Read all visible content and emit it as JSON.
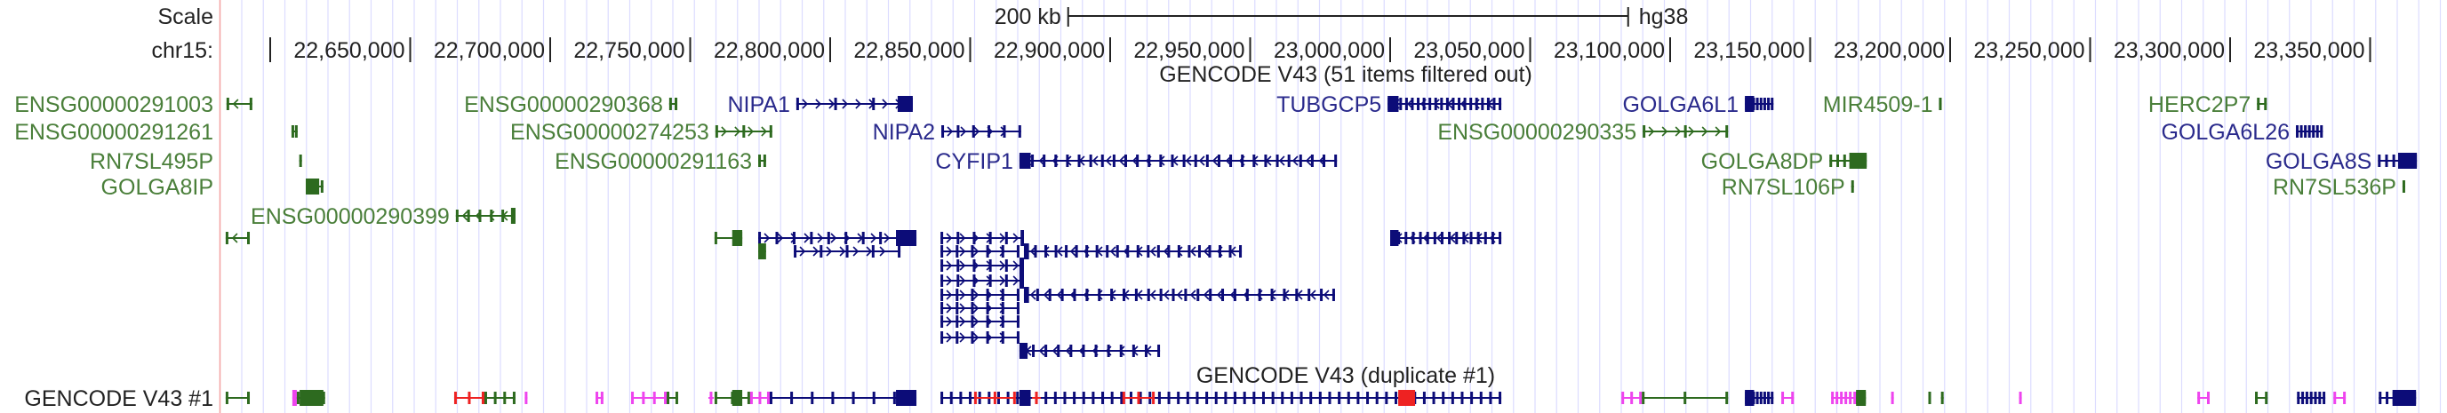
{
  "left_labels": {
    "scale": "Scale",
    "chrom": "chr15:",
    "track": "GENCODE V43 #1"
  },
  "scale_bar": {
    "label": "200 kb",
    "assembly": "hg38",
    "span_bp": 200000,
    "start": 22885000
  },
  "ruler": {
    "ticks": [
      {
        "pos": 22600000,
        "label": ""
      },
      {
        "pos": 22650000,
        "label": "22,650,000"
      },
      {
        "pos": 22700000,
        "label": "22,700,000"
      },
      {
        "pos": 22750000,
        "label": "22,750,000"
      },
      {
        "pos": 22800000,
        "label": "22,800,000"
      },
      {
        "pos": 22850000,
        "label": "22,850,000"
      },
      {
        "pos": 22900000,
        "label": "22,900,000"
      },
      {
        "pos": 22950000,
        "label": "22,950,000"
      },
      {
        "pos": 23000000,
        "label": "23,000,000"
      },
      {
        "pos": 23050000,
        "label": "23,050,000"
      },
      {
        "pos": 23100000,
        "label": "23,100,000"
      },
      {
        "pos": 23150000,
        "label": "23,150,000"
      },
      {
        "pos": 23200000,
        "label": "23,200,000"
      },
      {
        "pos": 23250000,
        "label": "23,250,000"
      },
      {
        "pos": 23300000,
        "label": "23,300,000"
      },
      {
        "pos": 23350000,
        "label": "23,350,000"
      }
    ]
  },
  "colors": {
    "blue": "#0c0c78",
    "green": "#2d6a1f",
    "magenta": "#ee44ee",
    "red": "#ee2222",
    "label_blue": "#2a2a8c",
    "label_green": "#4a7f3a",
    "grid": "#dcdcff",
    "margin_line": "#f2a0a0"
  },
  "track": {
    "title": "GENCODE V43 (51 items filtered out)",
    "genes": [
      {
        "label": "ENSG00000291003",
        "start": 22584400,
        "end": 22593600,
        "strand": "-",
        "color": "green",
        "row": 1,
        "exons": 2
      },
      {
        "label": "ENSG00000290368",
        "start": 22742500,
        "end": 22745400,
        "strand": "",
        "color": "green",
        "row": 1,
        "exons": 2
      },
      {
        "label": "NIPA1",
        "start": 22787900,
        "end": 22829500,
        "strand": "+",
        "color": "blue",
        "row": 1,
        "exons": 4,
        "thick": [
          22824100,
          22829500
        ]
      },
      {
        "label": "TUBGCP5",
        "start": 22999100,
        "end": 23039700,
        "strand": "-",
        "color": "blue",
        "row": 1,
        "exons": 20,
        "thick": [
          22999100,
          23003000
        ]
      },
      {
        "label": "GOLGA6L1",
        "start": 23126700,
        "end": 23136900,
        "strand": "",
        "color": "blue",
        "row": 1,
        "exons": 8,
        "thick": [
          23126700,
          23130000
        ]
      },
      {
        "label": "MIR4509-1",
        "start": 23196300,
        "end": 23196700,
        "strand": "",
        "color": "green",
        "row": 1,
        "exons": 1
      },
      {
        "label": "HERC2P7",
        "start": 23309600,
        "end": 23313100,
        "strand": "",
        "color": "green",
        "row": 1,
        "exons": 2
      },
      {
        "label": "ENSG00000291261",
        "start": 22607600,
        "end": 22609800,
        "strand": "",
        "color": "green",
        "row": 2,
        "exons": 2
      },
      {
        "label": "ENSG00000274253",
        "start": 22759000,
        "end": 22779300,
        "strand": "+",
        "color": "green",
        "row": 2,
        "exons": 3
      },
      {
        "label": "NIPA2",
        "start": 22839700,
        "end": 22868200,
        "strand": "+",
        "color": "blue",
        "row": 2,
        "exons": 6
      },
      {
        "label": "ENSG00000290335",
        "start": 23090200,
        "end": 23120700,
        "strand": "+",
        "color": "green",
        "row": 2,
        "exons": 3
      },
      {
        "label": "GOLGA6L26",
        "start": 23323500,
        "end": 23333100,
        "strand": "",
        "color": "blue",
        "row": 2,
        "exons": 7
      },
      {
        "label": "RN7SL495P",
        "start": 22610700,
        "end": 22611000,
        "strand": "",
        "color": "green",
        "row": 3,
        "exons": 1
      },
      {
        "label": "ENSG00000291163",
        "start": 22774300,
        "end": 22777100,
        "strand": "",
        "color": "green",
        "row": 3,
        "exons": 2
      },
      {
        "label": "CYFIP1",
        "start": 22867600,
        "end": 22981000,
        "strand": "-",
        "color": "blue",
        "row": 3,
        "exons": 28,
        "thick": [
          22867600,
          22871600
        ]
      },
      {
        "label": "GOLGA8DP",
        "start": 23156900,
        "end": 23170200,
        "strand": "",
        "color": "green",
        "row": 3,
        "exons": 6,
        "thick": [
          23164000,
          23170200
        ]
      },
      {
        "label": "GOLGA8S",
        "start": 23352800,
        "end": 23366700,
        "strand": "",
        "color": "blue",
        "row": 3,
        "exons": 6,
        "thick": [
          23360000,
          23366700
        ]
      },
      {
        "label": "GOLGA8IP",
        "start": 22612700,
        "end": 22619000,
        "strand": "",
        "color": "green",
        "row": 4,
        "exons": 2,
        "thick": [
          22612700,
          22617500
        ]
      },
      {
        "label": "RN7SL106P",
        "start": 23165000,
        "end": 23165300,
        "strand": "",
        "color": "green",
        "row": 4,
        "exons": 1
      },
      {
        "label": "RN7SL536P",
        "start": 23361900,
        "end": 23362200,
        "strand": "",
        "color": "green",
        "row": 4,
        "exons": 1
      },
      {
        "label": "ENSG00000290399",
        "start": 22666300,
        "end": 22687600,
        "strand": "-",
        "color": "green",
        "row": 5,
        "exons": 6,
        "thick": [
          22686000,
          22687600
        ]
      },
      {
        "start": 22584100,
        "end": 22592700,
        "strand": "-",
        "color": "green",
        "row": 6,
        "exons": 2
      },
      {
        "start": 22758700,
        "end": 22768600,
        "strand": "",
        "color": "green",
        "row": 6,
        "exons": 2,
        "thick": [
          22765000,
          22768600
        ]
      },
      {
        "start": 22774300,
        "end": 22830800,
        "strand": "+",
        "color": "blue",
        "row": 6,
        "exons": 10,
        "thick": [
          22823500,
          22830800
        ]
      },
      {
        "start": 22839400,
        "end": 22869200,
        "strand": "+",
        "color": "blue",
        "row": 6,
        "exons": 6,
        "thick": [
          22868000,
          22869200
        ]
      },
      {
        "start": 23000000,
        "end": 23039700,
        "strand": "-",
        "color": "blue",
        "row": 6,
        "exons": 16,
        "thick": [
          23000000,
          23003000
        ]
      },
      {
        "start": 22774300,
        "end": 22777100,
        "strand": "",
        "color": "green",
        "row": 7,
        "exons": 1,
        "thick": [
          22774300,
          22777100
        ]
      },
      {
        "start": 22787000,
        "end": 22825100,
        "strand": "+",
        "color": "blue",
        "row": 7,
        "exons": 5
      },
      {
        "start": 22839400,
        "end": 22867600,
        "strand": "+",
        "color": "blue",
        "row": 7,
        "exons": 6
      },
      {
        "start": 22869200,
        "end": 22947000,
        "strand": "-",
        "color": "blue",
        "row": 7,
        "exons": 22,
        "thick": [
          22869200,
          22871000
        ]
      },
      {
        "start": 22839400,
        "end": 22869200,
        "strand": "+",
        "color": "blue",
        "row": 8,
        "exons": 6,
        "thick": [
          22867600,
          22869200
        ]
      },
      {
        "start": 22839400,
        "end": 22869200,
        "strand": "+",
        "color": "blue",
        "row": 9,
        "exons": 6,
        "thick": [
          22867600,
          22869200
        ]
      },
      {
        "start": 22839400,
        "end": 22867600,
        "strand": "+",
        "color": "blue",
        "row": 10,
        "exons": 6
      },
      {
        "start": 22869200,
        "end": 22980300,
        "strand": "-",
        "color": "blue",
        "row": 10,
        "exons": 26,
        "thick": [
          22869200,
          22871000
        ]
      },
      {
        "start": 22839400,
        "end": 22867600,
        "strand": "+",
        "color": "blue",
        "row": 11,
        "exons": 6
      },
      {
        "start": 22839400,
        "end": 22867600,
        "strand": "+",
        "color": "blue",
        "row": 12,
        "exons": 6
      },
      {
        "start": 22839400,
        "end": 22867600,
        "strand": "+",
        "color": "blue",
        "row": 13,
        "exons": 6
      },
      {
        "start": 22867600,
        "end": 22917800,
        "strand": "-",
        "color": "blue",
        "row": 14,
        "exons": 12,
        "thick": [
          22867600,
          22870500
        ]
      }
    ]
  },
  "duplicate_track": {
    "title": "GENCODE V43 (duplicate #1)",
    "segments": [
      {
        "start": 22584100,
        "end": 22592700,
        "color": "green",
        "exons": 2
      },
      {
        "start": 22607900,
        "end": 22609500,
        "color": "magenta",
        "exons": 1,
        "thick": [
          22607900,
          22609500
        ]
      },
      {
        "start": 22609500,
        "end": 22619600,
        "color": "green",
        "exons": 2,
        "thick": [
          22610500,
          22619000
        ]
      },
      {
        "start": 22665700,
        "end": 22676500,
        "color": "red",
        "exons": 3
      },
      {
        "start": 22676500,
        "end": 22687600,
        "color": "green",
        "exons": 4
      },
      {
        "start": 22691300,
        "end": 22691500,
        "color": "magenta",
        "exons": 1
      },
      {
        "start": 22716200,
        "end": 22719000,
        "color": "magenta",
        "exons": 2
      },
      {
        "start": 22728900,
        "end": 22741600,
        "color": "magenta",
        "exons": 4
      },
      {
        "start": 22741600,
        "end": 22745700,
        "color": "green",
        "exons": 2
      },
      {
        "start": 22756500,
        "end": 22758400,
        "color": "magenta",
        "exons": 1
      },
      {
        "start": 22758700,
        "end": 22771400,
        "color": "green",
        "exons": 3,
        "thick": [
          22765000,
          22768600
        ]
      },
      {
        "start": 22771400,
        "end": 22778400,
        "color": "magenta",
        "exons": 3
      },
      {
        "start": 22778400,
        "end": 22830800,
        "color": "blue",
        "exons": 8,
        "thick": [
          22823500,
          22830800
        ]
      },
      {
        "start": 22839400,
        "end": 23039700,
        "color": "blue",
        "exons": 60,
        "thick": [
          22867600,
          22871600
        ]
      },
      {
        "start": 22851400,
        "end": 22866300,
        "color": "red",
        "exons": 3
      },
      {
        "start": 22872100,
        "end": 22875200,
        "color": "red",
        "exons": 1
      },
      {
        "start": 22904400,
        "end": 22915900,
        "color": "red",
        "exons": 3
      },
      {
        "start": 23002900,
        "end": 23008900,
        "color": "red",
        "exons": 2,
        "thick": [
          23002900,
          23008900
        ]
      },
      {
        "start": 23082600,
        "end": 23089900,
        "color": "magenta",
        "exons": 3
      },
      {
        "start": 23089900,
        "end": 23120700,
        "color": "green",
        "exons": 3
      },
      {
        "start": 23126700,
        "end": 23136900,
        "color": "blue",
        "exons": 8,
        "thick": [
          23126700,
          23130000
        ]
      },
      {
        "start": 23139700,
        "end": 23144200,
        "color": "magenta",
        "exons": 2
      },
      {
        "start": 23157500,
        "end": 23166400,
        "color": "magenta",
        "exons": 6
      },
      {
        "start": 23166400,
        "end": 23169900,
        "color": "green",
        "exons": 2,
        "thick": [
          23166400,
          23169900
        ]
      },
      {
        "start": 23179300,
        "end": 23179500,
        "color": "magenta",
        "exons": 1
      },
      {
        "start": 23192600,
        "end": 23192800,
        "color": "green",
        "exons": 1
      },
      {
        "start": 23197100,
        "end": 23197300,
        "color": "green",
        "exons": 1
      },
      {
        "start": 23225000,
        "end": 23225200,
        "color": "magenta",
        "exons": 1
      },
      {
        "start": 23288300,
        "end": 23292700,
        "color": "magenta",
        "exons": 2
      },
      {
        "start": 23308900,
        "end": 23313400,
        "color": "green",
        "exons": 2
      },
      {
        "start": 23323900,
        "end": 23334000,
        "color": "blue",
        "exons": 7
      },
      {
        "start": 23336900,
        "end": 23341300,
        "color": "magenta",
        "exons": 2
      },
      {
        "start": 23353100,
        "end": 23366400,
        "color": "blue",
        "exons": 6,
        "thick": [
          23358000,
          23366400
        ]
      }
    ]
  }
}
